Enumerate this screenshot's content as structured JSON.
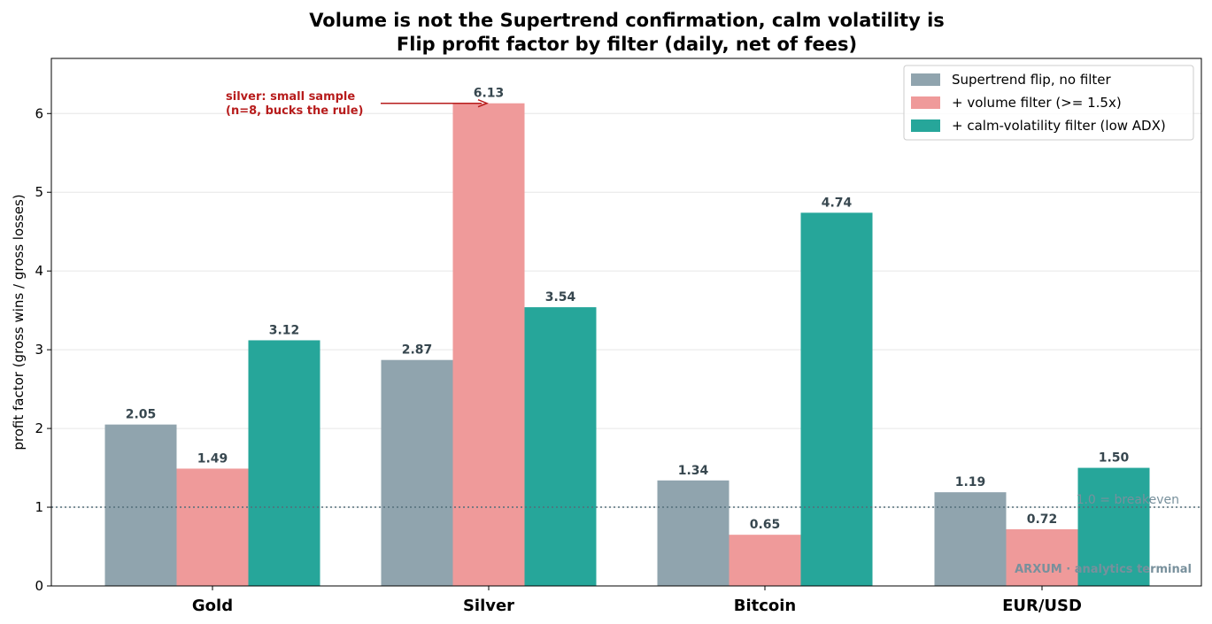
{
  "chart_data": {
    "type": "bar",
    "title": "Volume is not the Supertrend confirmation, calm volatility is",
    "subtitle": "Flip profit factor by filter (daily, net of fees)",
    "xlabel": "",
    "ylabel": "profit factor (gross wins / gross losses)",
    "ylim": [
      0,
      6.7
    ],
    "yticks": [
      "0",
      "1",
      "2",
      "3",
      "4",
      "5",
      "6"
    ],
    "grid": "horizontal",
    "legend_position": "top-right",
    "categories": [
      "Gold",
      "Silver",
      "Bitcoin",
      "EUR/USD"
    ],
    "series": [
      {
        "name": "Supertrend flip, no filter",
        "color": "#90a4ae",
        "values": [
          2.05,
          2.87,
          1.34,
          1.19
        ],
        "labels": [
          "2.05",
          "2.87",
          "1.34",
          "1.19"
        ]
      },
      {
        "name": "+ volume filter (>= 1.5x)",
        "color": "#ef9a9a",
        "values": [
          1.49,
          6.13,
          0.65,
          0.72
        ],
        "labels": [
          "1.49",
          "6.13",
          "0.65",
          "0.72"
        ]
      },
      {
        "name": "+ calm-volatility filter (low ADX)",
        "color": "#26a69a",
        "values": [
          3.12,
          3.54,
          4.74,
          1.5
        ],
        "labels": [
          "3.12",
          "3.54",
          "4.74",
          "1.50"
        ]
      }
    ],
    "reference_line": {
      "value": 1.0,
      "label": "1.0 = breakeven",
      "color": "#546e7a"
    },
    "annotation": {
      "lines": [
        "silver: small sample",
        "(n=8, bucks the rule)"
      ],
      "target_category": "Silver",
      "target_series": 1,
      "target_value": 6.13,
      "color": "#b71c1c"
    },
    "watermark": "ARXUM · analytics terminal"
  }
}
